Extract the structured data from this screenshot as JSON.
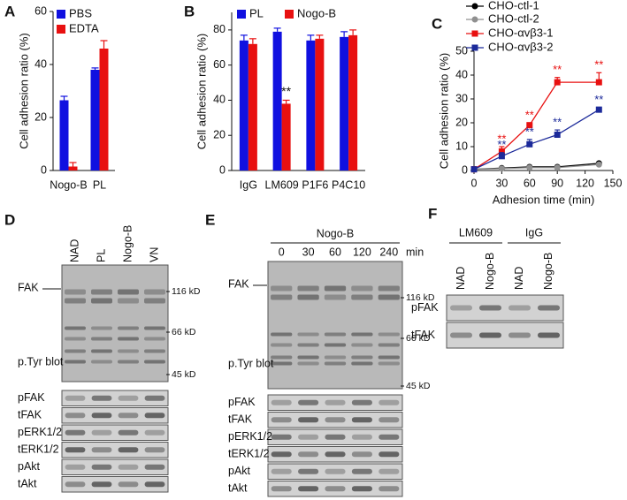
{
  "chart_data": [
    {
      "type": "bar",
      "panel": "A",
      "ylabel": "Cell adhesion ratio (%)",
      "categories": [
        "Nogo-B",
        "PL"
      ],
      "series": [
        {
          "name": "PBS",
          "color": "#1010e0",
          "values": [
            26.5,
            38
          ],
          "errors": [
            1.5,
            0.7
          ]
        },
        {
          "name": "EDTA",
          "color": "#e81010",
          "values": [
            1.5,
            46
          ],
          "errors": [
            1.5,
            3
          ]
        }
      ],
      "ylim": [
        0,
        60
      ],
      "yticks": [
        0,
        20,
        40,
        60
      ]
    },
    {
      "type": "bar",
      "panel": "B",
      "ylabel": "Cell adhesion ratio (%)",
      "categories": [
        "IgG",
        "LM609",
        "P1F6",
        "P4C10"
      ],
      "series": [
        {
          "name": "PL",
          "color": "#1010e0",
          "values": [
            74,
            79,
            74,
            76
          ],
          "errors": [
            3,
            2,
            3,
            3
          ]
        },
        {
          "name": "Nogo-B",
          "color": "#e81010",
          "values": [
            72,
            38,
            75,
            77
          ],
          "errors": [
            3,
            2,
            2,
            3
          ],
          "significance": [
            null,
            "**",
            null,
            null
          ]
        }
      ],
      "ylim": [
        0,
        90
      ],
      "yticks": [
        0,
        20,
        40,
        60,
        80
      ]
    },
    {
      "type": "line",
      "panel": "C",
      "xlabel": "Adhesion time (min)",
      "ylabel": "Cell adhesion ratio (%)",
      "x": [
        0,
        30,
        60,
        90,
        135
      ],
      "series": [
        {
          "name": "CHO-ctl-1",
          "color": "#000000",
          "marker": "circle",
          "values": [
            0.5,
            1,
            1.5,
            1.5,
            3
          ]
        },
        {
          "name": "CHO-ctl-2",
          "color": "#909090",
          "marker": "circle",
          "values": [
            0.5,
            0.8,
            1.2,
            1.2,
            2.5
          ]
        },
        {
          "name": "CHO-αvβ3-1",
          "color": "#e81010",
          "marker": "square",
          "values": [
            0.5,
            8,
            19,
            37,
            37
          ],
          "errors": [
            0,
            2,
            1,
            2,
            4
          ],
          "significance": [
            null,
            "**",
            "**",
            "**",
            "**"
          ]
        },
        {
          "name": "CHO-αvβ3-2",
          "color": "#1c2a9a",
          "marker": "square",
          "values": [
            0.5,
            6,
            11,
            15,
            25.5
          ],
          "errors": [
            0,
            1.5,
            2,
            2,
            1
          ],
          "significance": [
            null,
            "**",
            "**",
            "**",
            "**"
          ]
        }
      ],
      "xlim": [
        0,
        150
      ],
      "xticks": [
        0,
        30,
        60,
        90,
        120,
        150
      ],
      "ylim": [
        0,
        50
      ],
      "yticks": [
        0,
        10,
        20,
        30,
        40,
        50
      ]
    }
  ],
  "blots": [
    {
      "panel": "D",
      "lanes": [
        "NAD",
        "PL",
        "Nogo-B",
        "VN"
      ],
      "protein": "FAK",
      "markers": [
        "116 kD",
        "66 kD",
        "45 kD"
      ],
      "blot": "p.Tyr blot",
      "strips": [
        "pFAK",
        "tFAK",
        "pERK1/2",
        "tERK1/2",
        "pAkt",
        "tAkt"
      ]
    },
    {
      "panel": "E",
      "group": "Nogo-B",
      "lanes": [
        "0",
        "30",
        "60",
        "120",
        "240"
      ],
      "unit": "min",
      "protein": "FAK",
      "markers": [
        "116 kD",
        "66 kD",
        "45 kD"
      ],
      "blot": "p.Tyr blot",
      "strips": [
        "pFAK",
        "tFAK",
        "pERK1/2",
        "tERK1/2",
        "pAkt",
        "tAkt"
      ]
    },
    {
      "panel": "F",
      "groups": [
        {
          "name": "LM609",
          "lanes": [
            "NAD",
            "Nogo-B"
          ]
        },
        {
          "name": "IgG",
          "lanes": [
            "NAD",
            "Nogo-B"
          ]
        }
      ],
      "strips": [
        "pFAK",
        "tFAK"
      ]
    }
  ]
}
